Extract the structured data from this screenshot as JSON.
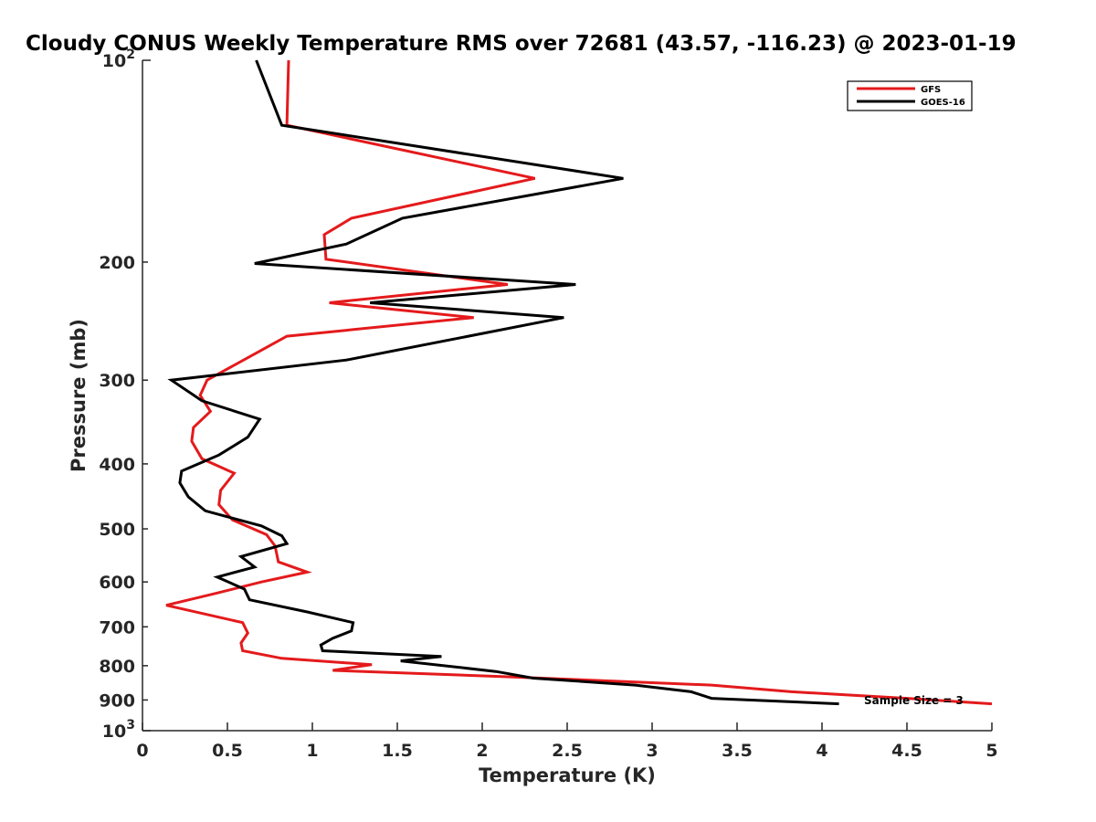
{
  "chart_data": {
    "type": "line",
    "title": "Cloudy CONUS Weekly Temperature RMS over 72681 (43.57, -116.23) @ 2023-01-19",
    "xlabel": "Temperature (K)",
    "ylabel": "Pressure (mb)",
    "xlim": [
      0,
      5
    ],
    "ylim": [
      100,
      1000
    ],
    "y_scale": "log",
    "y_reversed": true,
    "x_ticks": [
      0,
      0.5,
      1,
      1.5,
      2,
      2.5,
      3,
      3.5,
      4,
      4.5,
      5
    ],
    "x_tick_labels": [
      "0",
      "0.5",
      "1",
      "1.5",
      "2",
      "2.5",
      "3",
      "3.5",
      "4",
      "4.5",
      "5"
    ],
    "y_ticks": [
      100,
      200,
      300,
      400,
      500,
      600,
      700,
      800,
      900,
      1000
    ],
    "y_tick_labels": [
      "10^2",
      "200",
      "300",
      "400",
      "500",
      "600",
      "700",
      "800",
      "900",
      "10^3"
    ],
    "grid": false,
    "legend_position": "top-right",
    "annotation": "Sample Size = 3",
    "series": [
      {
        "name": "GFS",
        "color": "#e41a1c",
        "x": [
          0.86,
          0.85,
          2.31,
          1.23,
          1.07,
          1.08,
          2.15,
          1.1,
          1.95,
          0.85,
          0.38,
          0.34,
          0.4,
          0.3,
          0.29,
          0.35,
          0.54,
          0.46,
          0.45,
          0.53,
          0.73,
          0.78,
          0.8,
          0.97,
          0.7,
          0.42,
          0.14,
          0.59,
          0.62,
          0.58,
          0.59,
          0.82,
          1.35,
          1.12,
          2.15,
          3.35,
          3.82,
          4.5,
          5.0
        ],
        "y": [
          100,
          125,
          150,
          172,
          182,
          198,
          216,
          230,
          242,
          258,
          300,
          316,
          334,
          353,
          370,
          393,
          413,
          438,
          460,
          485,
          510,
          530,
          560,
          580,
          600,
          625,
          650,
          690,
          715,
          740,
          760,
          780,
          797,
          813,
          831,
          855,
          875,
          895,
          912
        ]
      },
      {
        "name": "GOES-16",
        "color": "#000000",
        "x": [
          0.67,
          0.82,
          2.83,
          1.53,
          1.2,
          0.66,
          2.55,
          1.34,
          2.48,
          1.2,
          0.17,
          0.35,
          0.69,
          0.62,
          0.45,
          0.23,
          0.22,
          0.27,
          0.37,
          0.7,
          0.82,
          0.85,
          0.58,
          0.66,
          0.44,
          0.6,
          0.63,
          0.97,
          1.24,
          1.23,
          1.12,
          1.05,
          1.06,
          1.76,
          1.52,
          2.08,
          2.3,
          2.9,
          3.23,
          3.35,
          4.1
        ],
        "y": [
          100,
          125,
          150,
          172,
          188,
          201,
          216,
          230,
          242,
          280,
          300,
          322,
          343,
          365,
          388,
          410,
          427,
          448,
          470,
          495,
          512,
          526,
          550,
          570,
          590,
          615,
          638,
          665,
          690,
          710,
          728,
          745,
          760,
          775,
          787,
          816,
          835,
          855,
          875,
          895,
          912
        ]
      }
    ]
  }
}
